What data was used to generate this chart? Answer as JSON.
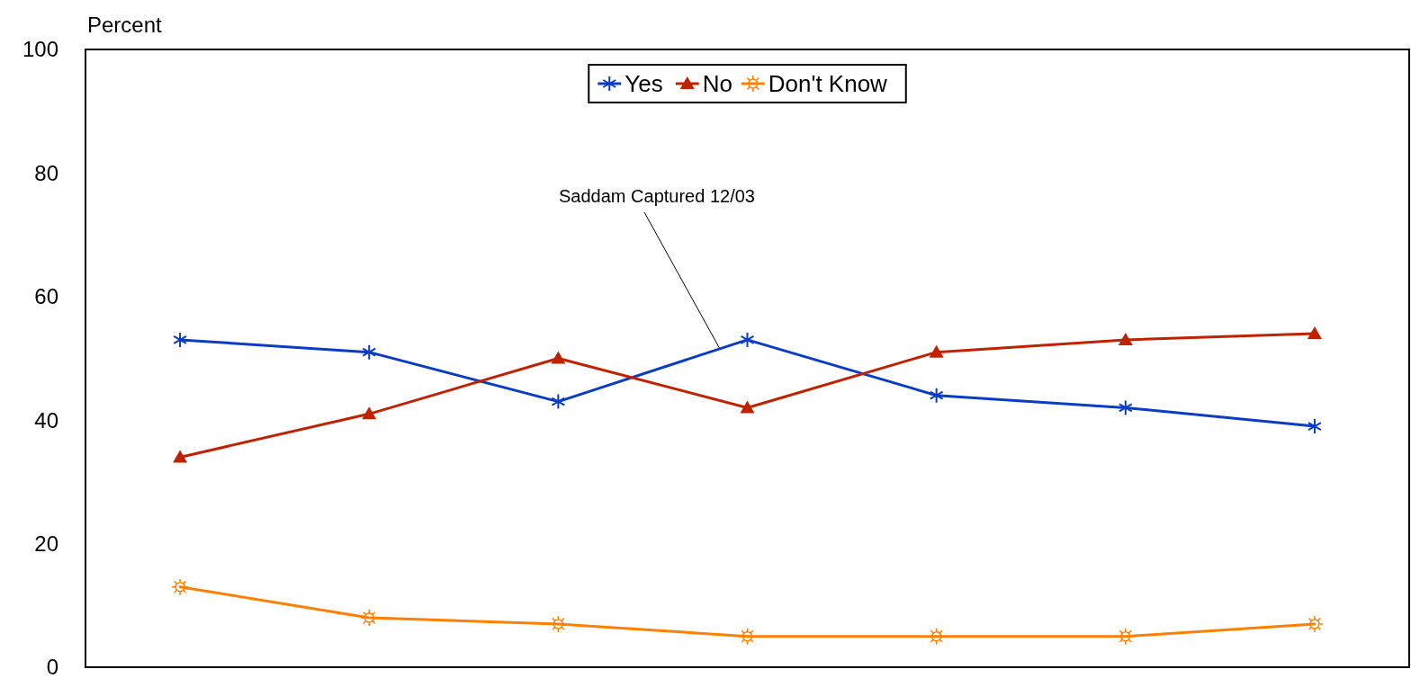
{
  "chart_data": {
    "type": "line",
    "ylabel": "Percent",
    "categories": [
      null,
      null,
      null,
      null,
      null,
      null,
      null
    ],
    "series": [
      {
        "name": "Yes",
        "color": "#0a3cc4",
        "marker": "cross",
        "values": [
          53,
          51,
          43,
          53,
          44,
          42,
          39
        ]
      },
      {
        "name": "No",
        "color": "#c02200",
        "marker": "triangle",
        "values": [
          34,
          41,
          50,
          42,
          51,
          53,
          54
        ]
      },
      {
        "name": "Don't Know",
        "color": "#ff8000",
        "marker": "circle",
        "values": [
          13,
          8,
          7,
          5,
          5,
          5,
          7
        ]
      }
    ],
    "ylim": [
      0,
      100
    ],
    "yticks": [
      0,
      20,
      40,
      60,
      80,
      100
    ],
    "grid": false,
    "legend": "top",
    "annotations": [
      "Saddam Captured 12/03"
    ]
  }
}
